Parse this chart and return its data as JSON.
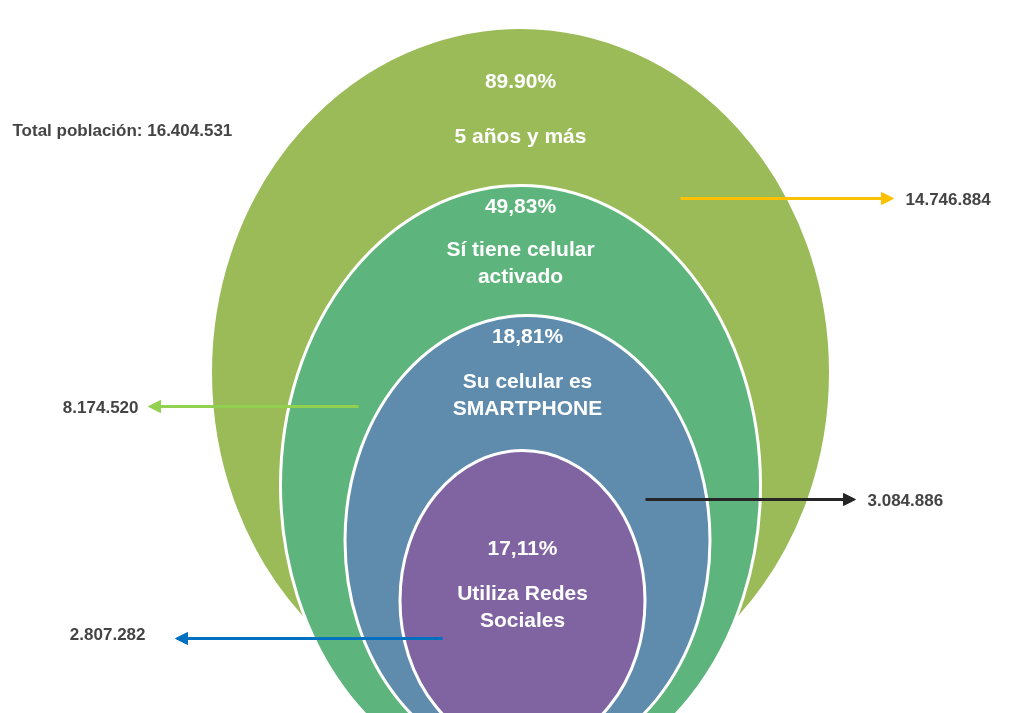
{
  "chart_data": {
    "type": "other",
    "categories": [
      "5 años y más",
      "Sí tiene celular activado",
      "Su celular es SMARTPHONE",
      "Utiliza Redes Sociales"
    ],
    "values": [
      89.9,
      49.83,
      18.81,
      17.11
    ],
    "value_labels": [
      "89.90%",
      "49,83%",
      "18,81%",
      "17,11%"
    ],
    "colors": [
      "#9bbb59",
      "#5db47c",
      "#5f8cad",
      "#8064a2"
    ],
    "annotations": [
      "Total población: 16.404.531",
      "14.746.884",
      "8.174.520",
      "3.084.886",
      "2.807.282"
    ]
  }
}
